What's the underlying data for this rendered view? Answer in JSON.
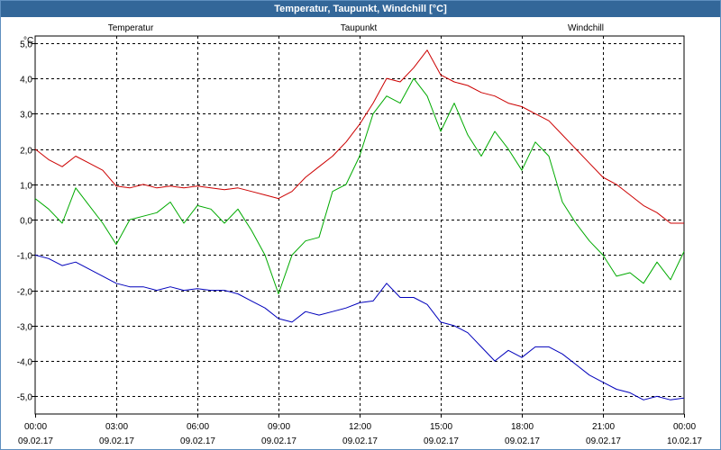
{
  "window": {
    "title": "Temperatur, Taupunkt, Windchill [°C]"
  },
  "colors": {
    "temperature": "#cc0000",
    "dewpoint": "#0000bb",
    "windchill": "#00aa00",
    "grid": "#000000",
    "titlebar": "#336799"
  },
  "chart_data": {
    "type": "line",
    "title": "Temperatur, Taupunkt, Windchill [°C]",
    "ylabel": "°C",
    "ylim": [
      -5.5,
      5.2
    ],
    "xlim": [
      0,
      24
    ],
    "grid": true,
    "legend_placement": "top",
    "y_ticks": [
      5,
      4,
      3,
      2,
      1,
      0,
      -1,
      -2,
      -3,
      -4,
      -5
    ],
    "y_tick_labels": [
      "5,0",
      "4,0",
      "3,0",
      "2,0",
      "1,0",
      "0,0",
      "-1,0",
      "-2,0",
      "-3,0",
      "-4,0",
      "-5,0"
    ],
    "x_ticks": [
      {
        "hour": 0,
        "time": "00:00",
        "date": "09.02.17"
      },
      {
        "hour": 3,
        "time": "03:00",
        "date": "09.02.17"
      },
      {
        "hour": 6,
        "time": "06:00",
        "date": "09.02.17"
      },
      {
        "hour": 9,
        "time": "09:00",
        "date": "09.02.17"
      },
      {
        "hour": 12,
        "time": "12:00",
        "date": "09.02.17"
      },
      {
        "hour": 15,
        "time": "15:00",
        "date": "09.02.17"
      },
      {
        "hour": 18,
        "time": "18:00",
        "date": "09.02.17"
      },
      {
        "hour": 21,
        "time": "21:00",
        "date": "09.02.17"
      },
      {
        "hour": 24,
        "time": "00:00",
        "date": "10.02.17"
      }
    ],
    "series": [
      {
        "name": "Temperatur",
        "color": "#cc0000",
        "x": [
          0,
          0.5,
          1,
          1.5,
          2,
          2.5,
          3,
          3.5,
          4,
          4.5,
          5,
          5.5,
          6,
          6.5,
          7,
          7.5,
          8,
          8.5,
          9,
          9.5,
          10,
          10.5,
          11,
          11.5,
          12,
          12.5,
          13,
          13.5,
          14,
          14.5,
          15,
          15.5,
          16,
          16.5,
          17,
          17.5,
          18,
          18.5,
          19,
          19.5,
          20,
          20.5,
          21,
          21.5,
          22,
          22.5,
          23,
          23.5,
          24
        ],
        "values": [
          2.0,
          1.7,
          1.5,
          1.8,
          1.6,
          1.4,
          0.95,
          0.9,
          1.0,
          0.9,
          0.95,
          0.9,
          0.95,
          0.9,
          0.85,
          0.9,
          0.8,
          0.7,
          0.6,
          0.8,
          1.2,
          1.5,
          1.8,
          2.2,
          2.7,
          3.3,
          4.0,
          3.9,
          4.3,
          4.8,
          4.1,
          3.9,
          3.8,
          3.6,
          3.5,
          3.3,
          3.2,
          3.0,
          2.8,
          2.4,
          2.0,
          1.6,
          1.2,
          1.0,
          0.7,
          0.4,
          0.2,
          -0.1,
          -0.1
        ]
      },
      {
        "name": "Taupunkt",
        "color": "#0000bb",
        "x": [
          0,
          0.5,
          1,
          1.5,
          2,
          2.5,
          3,
          3.5,
          4,
          4.5,
          5,
          5.5,
          6,
          6.5,
          7,
          7.5,
          8,
          8.5,
          9,
          9.5,
          10,
          10.5,
          11,
          11.5,
          12,
          12.5,
          13,
          13.5,
          14,
          14.5,
          15,
          15.5,
          16,
          16.5,
          17,
          17.5,
          18,
          18.5,
          19,
          19.5,
          20,
          20.5,
          21,
          21.5,
          22,
          22.5,
          23,
          23.5,
          24
        ],
        "values": [
          -1.0,
          -1.1,
          -1.3,
          -1.2,
          -1.4,
          -1.6,
          -1.8,
          -1.9,
          -1.9,
          -2.0,
          -1.9,
          -2.0,
          -1.95,
          -2.0,
          -2.0,
          -2.1,
          -2.3,
          -2.5,
          -2.8,
          -2.9,
          -2.6,
          -2.7,
          -2.6,
          -2.5,
          -2.35,
          -2.3,
          -1.8,
          -2.2,
          -2.2,
          -2.4,
          -2.9,
          -3.0,
          -3.2,
          -3.6,
          -4.0,
          -3.7,
          -3.9,
          -3.6,
          -3.6,
          -3.8,
          -4.1,
          -4.4,
          -4.6,
          -4.8,
          -4.9,
          -5.1,
          -5.0,
          -5.1,
          -5.05
        ]
      },
      {
        "name": "Windchill",
        "color": "#00aa00",
        "x": [
          0,
          0.5,
          1,
          1.5,
          2,
          2.5,
          3,
          3.5,
          4,
          4.5,
          5,
          5.5,
          6,
          6.5,
          7,
          7.5,
          8,
          8.5,
          9,
          9.5,
          10,
          10.5,
          11,
          11.5,
          12,
          12.5,
          13,
          13.5,
          14,
          14.5,
          15,
          15.5,
          16,
          16.5,
          17,
          17.5,
          18,
          18.5,
          19,
          19.5,
          20,
          20.5,
          21,
          21.5,
          22,
          22.5,
          23,
          23.5,
          24
        ],
        "values": [
          0.6,
          0.3,
          -0.1,
          0.9,
          0.4,
          -0.1,
          -0.7,
          0.0,
          0.1,
          0.2,
          0.5,
          -0.1,
          0.4,
          0.3,
          -0.1,
          0.3,
          -0.3,
          -1.0,
          -2.1,
          -1.0,
          -0.6,
          -0.5,
          0.8,
          1.0,
          1.8,
          3.0,
          3.5,
          3.3,
          4.0,
          3.5,
          2.5,
          3.3,
          2.4,
          1.8,
          2.5,
          2.0,
          1.4,
          2.2,
          1.8,
          0.5,
          -0.1,
          -0.6,
          -1.0,
          -1.6,
          -1.5,
          -1.8,
          -1.2,
          -1.7,
          -0.9
        ]
      }
    ]
  }
}
